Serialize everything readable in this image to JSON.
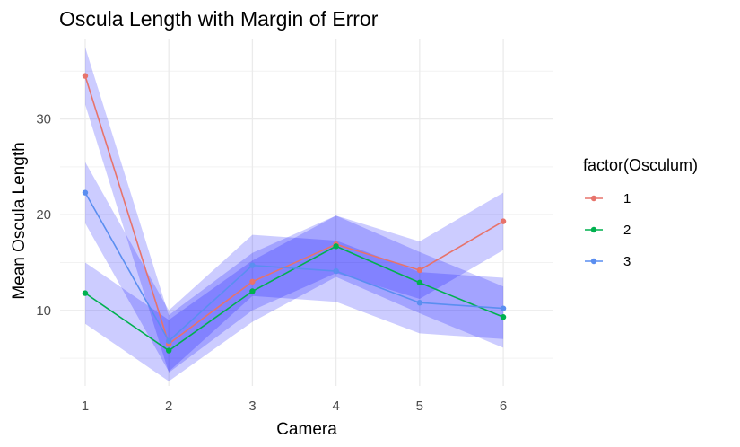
{
  "chart_data": {
    "type": "line",
    "title": "Oscula Length with Margin of Error",
    "xlabel": "Camera",
    "ylabel": "Mean Oscula Length",
    "x": [
      1,
      2,
      3,
      4,
      5,
      6
    ],
    "xlim": [
      0.7,
      6.6
    ],
    "ylim": [
      2.1,
      38.4
    ],
    "y_ticks": [
      10,
      20,
      30
    ],
    "x_ticks": [
      1,
      2,
      3,
      4,
      5,
      6
    ],
    "grid": true,
    "legend_title": "factor(Osculum)",
    "legend_position": "right",
    "ribbon_color": "#0000ff",
    "series": [
      {
        "name": "1",
        "color": "#E7736B",
        "values": [
          34.5,
          6.5,
          13.0,
          16.9,
          14.2,
          19.3
        ],
        "lower": [
          31.5,
          3.5,
          10.0,
          13.9,
          11.2,
          16.3
        ],
        "upper": [
          37.5,
          9.5,
          16.0,
          19.9,
          17.2,
          22.3
        ]
      },
      {
        "name": "2",
        "color": "#00B14F",
        "values": [
          11.8,
          5.8,
          12.0,
          16.7,
          12.9,
          9.3
        ],
        "lower": [
          8.6,
          2.6,
          8.8,
          13.5,
          9.7,
          6.1
        ],
        "upper": [
          15.0,
          9.0,
          15.2,
          19.9,
          16.1,
          12.5
        ]
      },
      {
        "name": "3",
        "color": "#5A8EF0",
        "values": [
          22.3,
          6.8,
          14.7,
          14.1,
          10.8,
          10.2
        ],
        "lower": [
          19.1,
          3.6,
          11.5,
          10.9,
          7.6,
          7.0
        ],
        "upper": [
          25.5,
          10.0,
          17.9,
          17.3,
          14.0,
          13.4
        ]
      }
    ]
  }
}
